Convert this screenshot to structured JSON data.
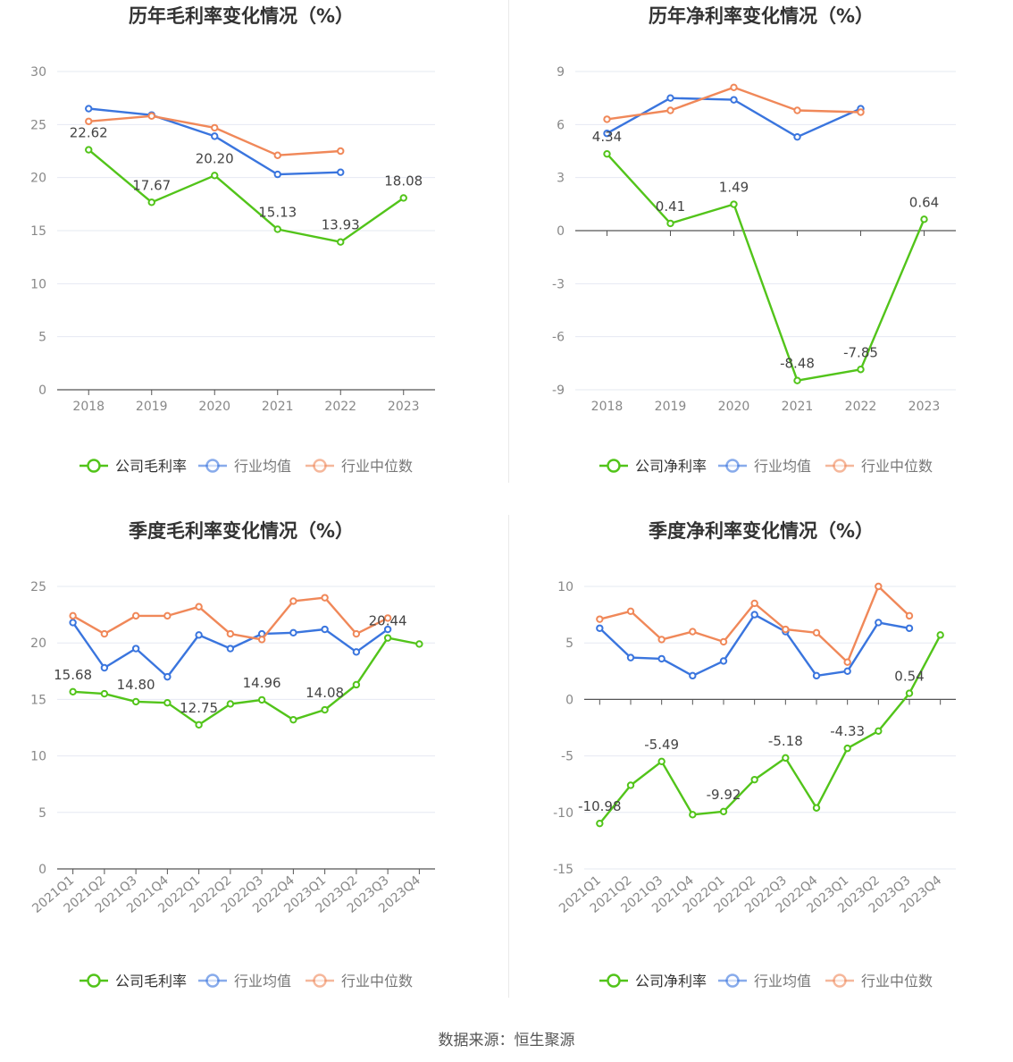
{
  "source_text": "数据来源：恒生聚源",
  "colors": {
    "company": "#52c41a",
    "avg": "#3a75de",
    "median": "#f08859",
    "grid": "#e6e8f2",
    "axis": "#555555",
    "tick": "#888888",
    "title": "#333333"
  },
  "chart_data": [
    {
      "type": "line",
      "title": "历年毛利率变化情况（%）",
      "categories": [
        "2018",
        "2019",
        "2020",
        "2021",
        "2022",
        "2023"
      ],
      "ylim": [
        0,
        30
      ],
      "yticks": [
        0,
        5,
        10,
        15,
        20,
        25,
        30
      ],
      "rotate_labels": false,
      "grid": true,
      "legend_position": "bottom",
      "series": [
        {
          "name": "公司毛利率",
          "role": "company",
          "values": [
            22.62,
            17.67,
            20.2,
            15.13,
            13.93,
            18.08
          ],
          "labels": [
            "22.62",
            "17.67",
            "20.20",
            "15.13",
            "13.93",
            "18.08"
          ]
        },
        {
          "name": "行业均值",
          "role": "avg",
          "values": [
            26.5,
            25.9,
            23.9,
            20.3,
            20.5,
            null
          ]
        },
        {
          "name": "行业中位数",
          "role": "median",
          "values": [
            25.3,
            25.8,
            24.7,
            22.1,
            22.5,
            null
          ]
        }
      ]
    },
    {
      "type": "line",
      "title": "历年净利率变化情况（%）",
      "categories": [
        "2018",
        "2019",
        "2020",
        "2021",
        "2022",
        "2023"
      ],
      "ylim": [
        -9,
        9
      ],
      "yticks": [
        -9,
        -6,
        -3,
        0,
        3,
        6,
        9
      ],
      "rotate_labels": false,
      "grid": true,
      "legend_position": "bottom",
      "series": [
        {
          "name": "公司净利率",
          "role": "company",
          "values": [
            4.34,
            0.41,
            1.49,
            -8.48,
            -7.85,
            0.64
          ],
          "labels": [
            "4.34",
            "0.41",
            "1.49",
            "-8.48",
            "-7.85",
            "0.64"
          ]
        },
        {
          "name": "行业均值",
          "role": "avg",
          "values": [
            5.5,
            7.5,
            7.4,
            5.3,
            6.9,
            null
          ]
        },
        {
          "name": "行业中位数",
          "role": "median",
          "values": [
            6.3,
            6.8,
            8.1,
            6.8,
            6.7,
            null
          ]
        }
      ]
    },
    {
      "type": "line",
      "title": "季度毛利率变化情况（%）",
      "categories": [
        "2021Q1",
        "2021Q2",
        "2021Q3",
        "2021Q4",
        "2022Q1",
        "2022Q2",
        "2022Q3",
        "2022Q4",
        "2023Q1",
        "2023Q2",
        "2023Q3",
        "2023Q4"
      ],
      "ylim": [
        0,
        25
      ],
      "yticks": [
        0,
        5,
        10,
        15,
        20,
        25
      ],
      "rotate_labels": true,
      "grid": true,
      "legend_position": "bottom",
      "series": [
        {
          "name": "公司毛利率",
          "role": "company",
          "values": [
            15.68,
            15.5,
            14.8,
            14.7,
            12.75,
            14.6,
            14.96,
            13.2,
            14.08,
            16.3,
            20.44,
            19.9
          ],
          "labels": [
            "15.68",
            "",
            "14.80",
            "",
            "12.75",
            "",
            "14.96",
            "",
            "14.08",
            "",
            "20.44",
            ""
          ]
        },
        {
          "name": "行业均值",
          "role": "avg",
          "values": [
            21.8,
            17.8,
            19.5,
            17.0,
            20.7,
            19.5,
            20.8,
            20.9,
            21.2,
            19.2,
            21.2,
            null
          ]
        },
        {
          "name": "行业中位数",
          "role": "median",
          "values": [
            22.4,
            20.8,
            22.4,
            22.4,
            23.2,
            20.8,
            20.3,
            23.7,
            24.0,
            20.8,
            22.2,
            null
          ]
        }
      ]
    },
    {
      "type": "line",
      "title": "季度净利率变化情况（%）",
      "categories": [
        "2021Q1",
        "2021Q2",
        "2021Q3",
        "2021Q4",
        "2022Q1",
        "2022Q2",
        "2022Q3",
        "2022Q4",
        "2023Q1",
        "2023Q2",
        "2023Q3",
        "2023Q4"
      ],
      "ylim": [
        -15,
        10
      ],
      "yticks": [
        -15,
        -10,
        -5,
        0,
        5,
        10
      ],
      "rotate_labels": true,
      "grid": true,
      "legend_position": "bottom",
      "series": [
        {
          "name": "公司净利率",
          "role": "company",
          "values": [
            -10.98,
            -7.6,
            -5.49,
            -10.2,
            -9.92,
            -7.1,
            -5.18,
            -9.6,
            -4.33,
            -2.8,
            0.54,
            5.7
          ],
          "labels": [
            "-10.98",
            "",
            "-5.49",
            "",
            "-9.92",
            "",
            "-5.18",
            "",
            "-4.33",
            "",
            "0.54",
            ""
          ]
        },
        {
          "name": "行业均值",
          "role": "avg",
          "values": [
            6.3,
            3.7,
            3.6,
            2.1,
            3.4,
            7.5,
            6.0,
            2.1,
            2.5,
            6.8,
            6.3,
            null
          ]
        },
        {
          "name": "行业中位数",
          "role": "median",
          "values": [
            7.1,
            7.8,
            5.3,
            6.0,
            5.1,
            8.5,
            6.2,
            5.9,
            3.3,
            10.0,
            7.4,
            null
          ]
        }
      ]
    }
  ]
}
